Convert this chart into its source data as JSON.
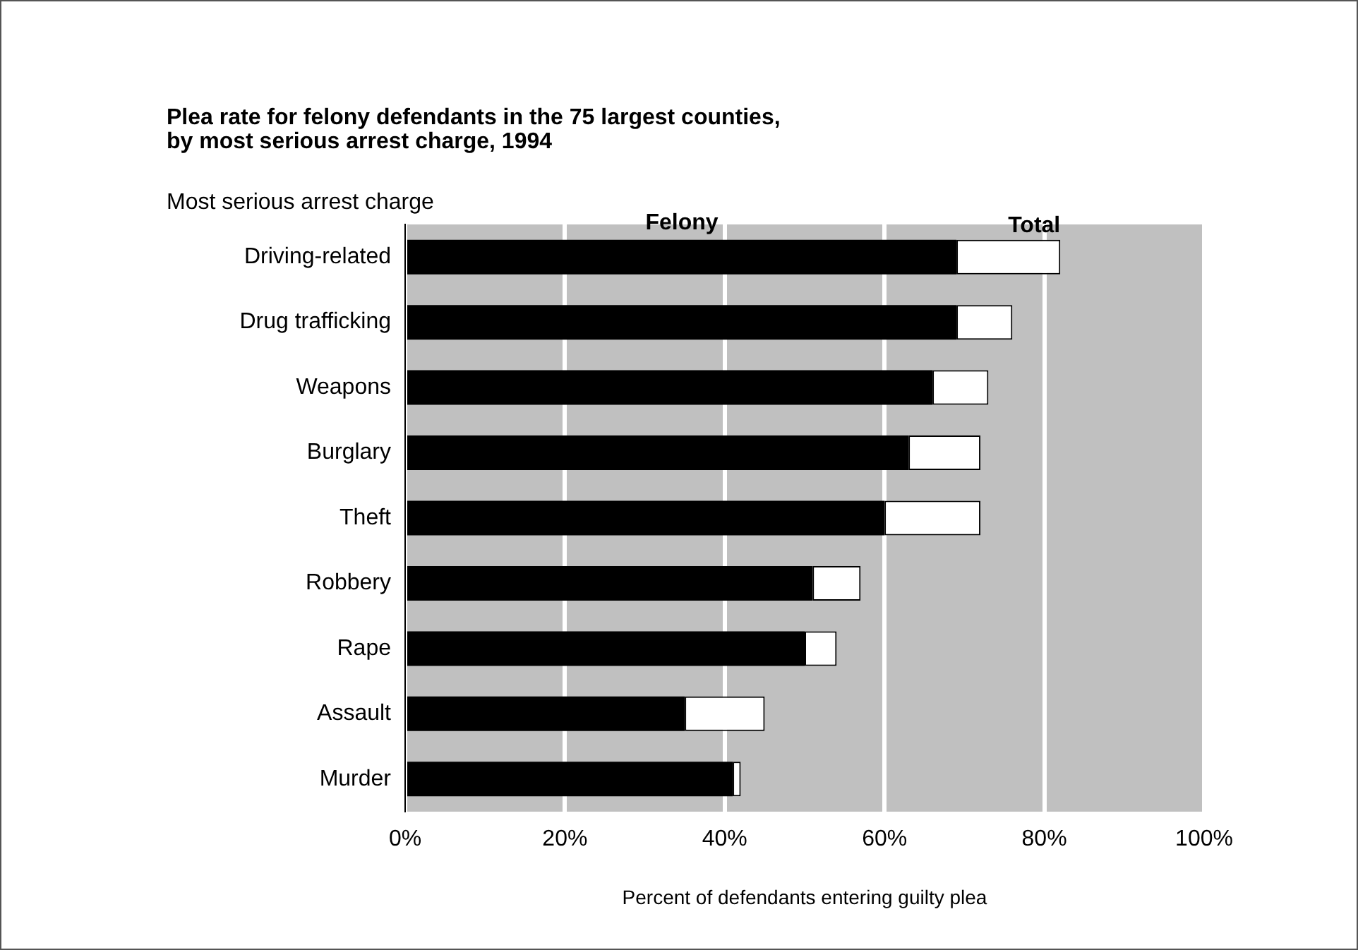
{
  "chart_data": {
    "type": "bar",
    "orientation": "horizontal",
    "stacked": true,
    "title": "Plea rate for felony defendants in the 75 largest counties,\nby most serious arrest charge, 1994",
    "ylabel": "Most serious arrest charge",
    "xlabel": "Percent of defendants entering guilty plea",
    "categories": [
      "Driving-related",
      "Drug trafficking",
      "Weapons",
      "Burglary",
      "Theft",
      "Robbery",
      "Rape",
      "Assault",
      "Murder"
    ],
    "series": [
      {
        "name": "Felony",
        "color": "#000000",
        "values": [
          69,
          69,
          66,
          63,
          60,
          51,
          50,
          35,
          41
        ]
      },
      {
        "name": "Total",
        "color": "#ffffff",
        "values": [
          13,
          7,
          7,
          9,
          12,
          6,
          4,
          10,
          1
        ]
      }
    ],
    "xlim": [
      0,
      100
    ],
    "xticks": [
      {
        "value": 0,
        "label": "0%"
      },
      {
        "value": 20,
        "label": "20%"
      },
      {
        "value": 40,
        "label": "40%"
      },
      {
        "value": 60,
        "label": "60%"
      },
      {
        "value": 80,
        "label": "80%"
      },
      {
        "value": 100,
        "label": "100%"
      }
    ],
    "grid": "x",
    "legend": false
  }
}
